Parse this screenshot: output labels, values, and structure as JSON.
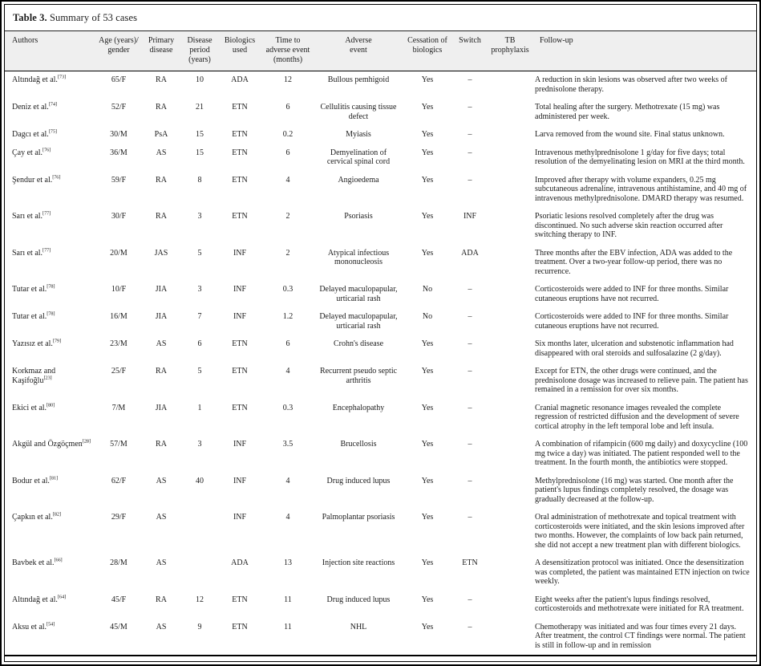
{
  "table": {
    "title_label": "Table 3.",
    "title_text": "Summary of 53 cases",
    "columns": [
      {
        "key": "authors",
        "label": "Authors",
        "align": "left"
      },
      {
        "key": "age-gender",
        "label": "Age (years)/\ngender",
        "align": "center"
      },
      {
        "key": "primary-disease",
        "label": "Primary\ndisease",
        "align": "center"
      },
      {
        "key": "disease-period",
        "label": "Disease\nperiod\n(years)",
        "align": "center"
      },
      {
        "key": "biologics-used",
        "label": "Biologics\nused",
        "align": "center"
      },
      {
        "key": "time-to-adverse-event",
        "label": "Time to\nadverse event\n(months)",
        "align": "center"
      },
      {
        "key": "adverse-event",
        "label": "Adverse\nevent",
        "align": "center"
      },
      {
        "key": "cessation",
        "label": "Cessation of\nbiologics",
        "align": "center"
      },
      {
        "key": "switch",
        "label": "Switch",
        "align": "center"
      },
      {
        "key": "tb-prophylaxis",
        "label": "TB\nprophylaxis",
        "align": "center"
      },
      {
        "key": "follow-up",
        "label": "Follow-up",
        "align": "left"
      }
    ],
    "rows": [
      {
        "authors": "Altındağ et al.",
        "ref": "73",
        "age_gender": "65/F",
        "primary_disease": "RA",
        "disease_period": "10",
        "biologics_used": "ADA",
        "time_to_event": "12",
        "adverse_event": "Bullous pemhigoid",
        "cessation": "Yes",
        "switch": "–",
        "tb_prophylaxis": "",
        "follow_up": "A reduction in skin lesions was observed after two weeks of prednisolone therapy."
      },
      {
        "authors": "Deniz et al.",
        "ref": "74",
        "age_gender": "52/F",
        "primary_disease": "RA",
        "disease_period": "21",
        "biologics_used": "ETN",
        "time_to_event": "6",
        "adverse_event": "Cellulitis causing tissue defect",
        "cessation": "Yes",
        "switch": "–",
        "tb_prophylaxis": "",
        "follow_up": "Total healing after the surgery. Methotrexate (15 mg) was administered per week."
      },
      {
        "authors": "Dagcı et al.",
        "ref": "75",
        "age_gender": "30/M",
        "primary_disease": "PsA",
        "disease_period": "15",
        "biologics_used": "ETN",
        "time_to_event": "0.2",
        "adverse_event": "Myiasis",
        "cessation": "Yes",
        "switch": "–",
        "tb_prophylaxis": "",
        "follow_up": "Larva removed from the wound site. Final status unknown."
      },
      {
        "authors": "Çay et al.",
        "ref": "76",
        "age_gender": "36/M",
        "primary_disease": "AS",
        "disease_period": "15",
        "biologics_used": "ETN",
        "time_to_event": "6",
        "adverse_event": "Demyelination of cervical spinal cord",
        "cessation": "Yes",
        "switch": "–",
        "tb_prophylaxis": "",
        "follow_up": "Intravenous methylprednisolone 1 g/day for five days; total resolution of the demyelinating lesion on MRI at the third month."
      },
      {
        "authors": "Şendur et al.",
        "ref": "76",
        "age_gender": "59/F",
        "primary_disease": "RA",
        "disease_period": "8",
        "biologics_used": "ETN",
        "time_to_event": "4",
        "adverse_event": "Angioedema",
        "cessation": "Yes",
        "switch": "–",
        "tb_prophylaxis": "",
        "follow_up": "Improved after therapy with volume expanders, 0.25 mg subcutaneous adrenaline, intravenous antihistamine, and 40 mg of intravenous methylprednisolone. DMARD therapy was resumed."
      },
      {
        "authors": "Sarı et al.",
        "ref": "77",
        "age_gender": "30/F",
        "primary_disease": "RA",
        "disease_period": "3",
        "biologics_used": "ETN",
        "time_to_event": "2",
        "adverse_event": "Psoriasis",
        "cessation": "Yes",
        "switch": "INF",
        "tb_prophylaxis": "",
        "follow_up": "Psoriatic lesions resolved completely after the drug was discontinued. No such adverse skin reaction occurred after switching therapy to INF."
      },
      {
        "authors": "Sarı et al.",
        "ref": "77",
        "age_gender": "20/M",
        "primary_disease": "JAS",
        "disease_period": "5",
        "biologics_used": "INF",
        "time_to_event": "2",
        "adverse_event": "Atypical infectious mononucleosis",
        "cessation": "Yes",
        "switch": "ADA",
        "tb_prophylaxis": "",
        "follow_up": "Three months after the EBV infection, ADA was added to the treatment. Over a two-year follow-up period, there was no recurrence."
      },
      {
        "authors": "Tutar et al.",
        "ref": "78",
        "age_gender": "10/F",
        "primary_disease": "JIA",
        "disease_period": "3",
        "biologics_used": "INF",
        "time_to_event": "0.3",
        "adverse_event": "Delayed maculopapular, urticarial rash",
        "cessation": "No",
        "switch": "–",
        "tb_prophylaxis": "",
        "follow_up": "Corticosteroids were added to INF for three months. Similar cutaneous eruptions have not recurred."
      },
      {
        "authors": "Tutar et al.",
        "ref": "78",
        "age_gender": "16/M",
        "primary_disease": "JIA",
        "disease_period": "7",
        "biologics_used": "INF",
        "time_to_event": "1.2",
        "adverse_event": "Delayed maculopapular, urticarial rash",
        "cessation": "No",
        "switch": "–",
        "tb_prophylaxis": "",
        "follow_up": "Corticosteroids were added to INF for three months. Similar cutaneous eruptions have not recurred."
      },
      {
        "authors": "Yazısız et al.",
        "ref": "79",
        "age_gender": "23/M",
        "primary_disease": "AS",
        "disease_period": "6",
        "biologics_used": "ETN",
        "time_to_event": "6",
        "adverse_event": "Crohn's disease",
        "cessation": "Yes",
        "switch": "–",
        "tb_prophylaxis": "",
        "follow_up": "Six months later, ulceration and substenotic inflammation had disappeared with oral steroids and sulfosalazine (2 g/day)."
      },
      {
        "authors": "Korkmaz and Kaşifoğlu",
        "ref": "23",
        "age_gender": "25/F",
        "primary_disease": "RA",
        "disease_period": "5",
        "biologics_used": "ETN",
        "time_to_event": "4",
        "adverse_event": "Recurrent pseudo septic arthritis",
        "cessation": "Yes",
        "switch": "–",
        "tb_prophylaxis": "",
        "follow_up": "Except for ETN, the other drugs were continued, and the prednisolone dosage was increased to relieve pain. The patient has remained in a remission for over six months."
      },
      {
        "authors": "Ekici et al.",
        "ref": "80",
        "age_gender": "7/M",
        "primary_disease": "JIA",
        "disease_period": "1",
        "biologics_used": "ETN",
        "time_to_event": "0.3",
        "adverse_event": "Encephalopathy",
        "cessation": "Yes",
        "switch": "–",
        "tb_prophylaxis": "",
        "follow_up": "Cranial magnetic resonance images revealed the complete regression of restricted diffusion and the development of severe cortical atrophy in the left temporal lobe and left insula."
      },
      {
        "authors": "Akgül and Özgöçmen",
        "ref": "28",
        "age_gender": "57/M",
        "primary_disease": "RA",
        "disease_period": "3",
        "biologics_used": "INF",
        "time_to_event": "3.5",
        "adverse_event": "Brucellosis",
        "cessation": "Yes",
        "switch": "–",
        "tb_prophylaxis": "",
        "follow_up": "A combination of rifampicin (600 mg daily) and doxycycline (100 mg twice a day) was initiated. The patient responded well to the treatment. In the fourth month, the antibiotics were stopped."
      },
      {
        "authors": "Bodur et al.",
        "ref": "81",
        "age_gender": "62/F",
        "primary_disease": "AS",
        "disease_period": "40",
        "biologics_used": "INF",
        "time_to_event": "4",
        "adverse_event": "Drug induced lupus",
        "cessation": "Yes",
        "switch": "–",
        "tb_prophylaxis": "",
        "follow_up": "Methylprednisolone (16 mg) was started. One month after the patient's lupus findings completely resolved, the dosage was gradually decreased at the follow-up."
      },
      {
        "authors": "Çapkın et al.",
        "ref": "82",
        "age_gender": "29/F",
        "primary_disease": "AS",
        "disease_period": "",
        "biologics_used": "INF",
        "time_to_event": "4",
        "adverse_event": "Palmoplantar psoriasis",
        "cessation": "Yes",
        "switch": "–",
        "tb_prophylaxis": "",
        "follow_up": "Oral administration of methotrexate and topical treatment with corticosteroids were initiated, and the skin lesions improved after two months. However, the complaints of low back pain returned, she did not accept a new treatment plan with different biologics."
      },
      {
        "authors": "Bavbek et al.",
        "ref": "66",
        "age_gender": "28/M",
        "primary_disease": "AS",
        "disease_period": "",
        "biologics_used": "ADA",
        "time_to_event": "13",
        "adverse_event": "Injection site reactions",
        "cessation": "Yes",
        "switch": "ETN",
        "tb_prophylaxis": "",
        "follow_up": "A desensitization protocol was initiated. Once the desensitization was completed, the patient was maintained ETN injection on twice weekly."
      },
      {
        "authors": "Altındağ et al.",
        "ref": "64",
        "age_gender": "45/F",
        "primary_disease": "RA",
        "disease_period": "12",
        "biologics_used": "ETN",
        "time_to_event": "11",
        "adverse_event": "Drug induced lupus",
        "cessation": "Yes",
        "switch": "–",
        "tb_prophylaxis": "",
        "follow_up": "Eight weeks after the patient's lupus findings resolved, corticosteroids and methotrexate were initiated for RA treatment."
      },
      {
        "authors": "Aksu et al.",
        "ref": "54",
        "age_gender": "45/M",
        "primary_disease": "AS",
        "disease_period": "9",
        "biologics_used": "ETN",
        "time_to_event": "11",
        "adverse_event": "NHL",
        "cessation": "Yes",
        "switch": "–",
        "tb_prophylaxis": "",
        "follow_up": "Chemotherapy was initiated and was four times every 21 days. After treatment, the control CT findings were normal. The patient is still in follow-up and in remission"
      }
    ]
  }
}
